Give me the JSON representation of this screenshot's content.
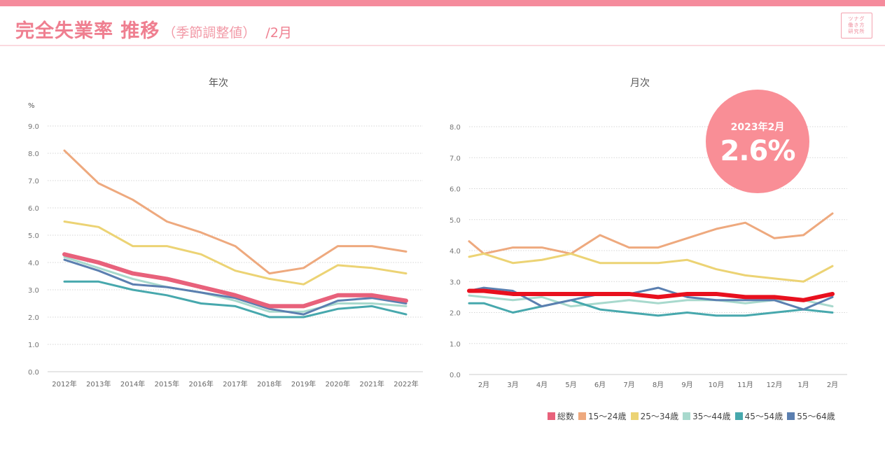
{
  "header": {
    "title": "完全失業率 推移",
    "subtitle": "（季節調整値）",
    "month": "/2月",
    "logo_lines": [
      "ツナグ",
      "働き方",
      "研究所"
    ]
  },
  "badge": {
    "label": "2023年2月",
    "value": "2.6%"
  },
  "colors": {
    "brand": "#f58b9c",
    "badge": "#f98e96"
  },
  "chart_data": [
    {
      "type": "line",
      "title": "年次",
      "ylabel": "%",
      "ylim": [
        0,
        9
      ],
      "yticks": [
        "0.0",
        "1.0",
        "2.0",
        "3.0",
        "4.0",
        "5.0",
        "6.0",
        "7.0",
        "8.0",
        "9.0"
      ],
      "grid": true,
      "categories": [
        "2012年",
        "2013年",
        "2014年",
        "2015年",
        "2016年",
        "2017年",
        "2018年",
        "2019年",
        "2020年",
        "2021年",
        "2022年"
      ],
      "series": [
        {
          "name": "15〜24歳",
          "color": "#eea97e",
          "width": 3,
          "values": [
            8.1,
            6.9,
            6.3,
            5.5,
            5.1,
            4.6,
            3.6,
            3.8,
            4.6,
            4.6,
            4.4
          ]
        },
        {
          "name": "25〜34歳",
          "color": "#ecd374",
          "width": 3,
          "values": [
            5.5,
            5.3,
            4.6,
            4.6,
            4.3,
            3.7,
            3.4,
            3.2,
            3.9,
            3.8,
            3.6
          ]
        },
        {
          "name": "35〜44歳",
          "color": "#a8d9cd",
          "width": 3,
          "values": [
            4.2,
            3.8,
            3.4,
            3.1,
            2.9,
            2.6,
            2.2,
            2.2,
            2.5,
            2.5,
            2.4
          ]
        },
        {
          "name": "45〜54歳",
          "color": "#47a8ad",
          "width": 3,
          "values": [
            3.3,
            3.3,
            3.0,
            2.8,
            2.5,
            2.4,
            2.0,
            2.0,
            2.3,
            2.4,
            2.1
          ]
        },
        {
          "name": "55〜64歳",
          "color": "#5b7fb0",
          "width": 3,
          "values": [
            4.1,
            3.7,
            3.2,
            3.1,
            2.9,
            2.7,
            2.3,
            2.1,
            2.6,
            2.7,
            2.5
          ]
        },
        {
          "name": "総数",
          "color": "#e8617b",
          "width": 6,
          "values": [
            4.3,
            4.0,
            3.6,
            3.4,
            3.1,
            2.8,
            2.4,
            2.4,
            2.8,
            2.8,
            2.6
          ]
        }
      ]
    },
    {
      "type": "line",
      "title": "月次",
      "ylim": [
        0,
        8
      ],
      "yticks": [
        "0.0",
        "1.0",
        "2.0",
        "3.0",
        "4.0",
        "5.0",
        "6.0",
        "7.0",
        "8.0"
      ],
      "grid": true,
      "categories": [
        "2月",
        "3月",
        "4月",
        "5月",
        "6月",
        "7月",
        "8月",
        "9月",
        "10月",
        "11月",
        "12月",
        "1月",
        "2月"
      ],
      "series": [
        {
          "name": "15〜24歳",
          "color": "#eea97e",
          "width": 3,
          "start": 4.3,
          "values": [
            3.9,
            4.1,
            4.1,
            3.9,
            4.5,
            4.1,
            4.1,
            4.4,
            4.7,
            4.9,
            4.4,
            4.5,
            5.2
          ]
        },
        {
          "name": "25〜34歳",
          "color": "#ecd374",
          "width": 3,
          "start": 3.8,
          "values": [
            3.9,
            3.6,
            3.7,
            3.9,
            3.6,
            3.6,
            3.6,
            3.7,
            3.4,
            3.2,
            3.1,
            3.0,
            3.5
          ]
        },
        {
          "name": "35〜44歳",
          "color": "#a8d9cd",
          "width": 3,
          "start": 2.55,
          "values": [
            2.5,
            2.4,
            2.5,
            2.2,
            2.3,
            2.4,
            2.3,
            2.4,
            2.4,
            2.3,
            2.4,
            2.4,
            2.2
          ]
        },
        {
          "name": "45〜54歳",
          "color": "#47a8ad",
          "width": 3,
          "start": 2.3,
          "values": [
            2.3,
            2.0,
            2.2,
            2.4,
            2.1,
            2.0,
            1.9,
            2.0,
            1.9,
            1.9,
            2.0,
            2.1,
            2.0
          ]
        },
        {
          "name": "55〜64歳",
          "color": "#5b7fb0",
          "width": 3,
          "start": 2.7,
          "values": [
            2.8,
            2.7,
            2.2,
            2.4,
            2.6,
            2.6,
            2.8,
            2.5,
            2.4,
            2.4,
            2.4,
            2.1,
            2.5
          ]
        },
        {
          "name": "総数",
          "color": "#e8101e",
          "width": 6,
          "start": 2.7,
          "values": [
            2.7,
            2.6,
            2.6,
            2.6,
            2.6,
            2.6,
            2.5,
            2.6,
            2.6,
            2.5,
            2.5,
            2.4,
            2.6
          ]
        }
      ],
      "legend": [
        {
          "name": "総数",
          "color": "#e8617b"
        },
        {
          "name": "15〜24歳",
          "color": "#eea97e"
        },
        {
          "name": "25〜34歳",
          "color": "#ecd374"
        },
        {
          "name": "35〜44歳",
          "color": "#a8d9cd"
        },
        {
          "name": "45〜54歳",
          "color": "#47a8ad"
        },
        {
          "name": "55〜64歳",
          "color": "#5b7fb0"
        }
      ],
      "legend_position": "bottom-right"
    }
  ]
}
